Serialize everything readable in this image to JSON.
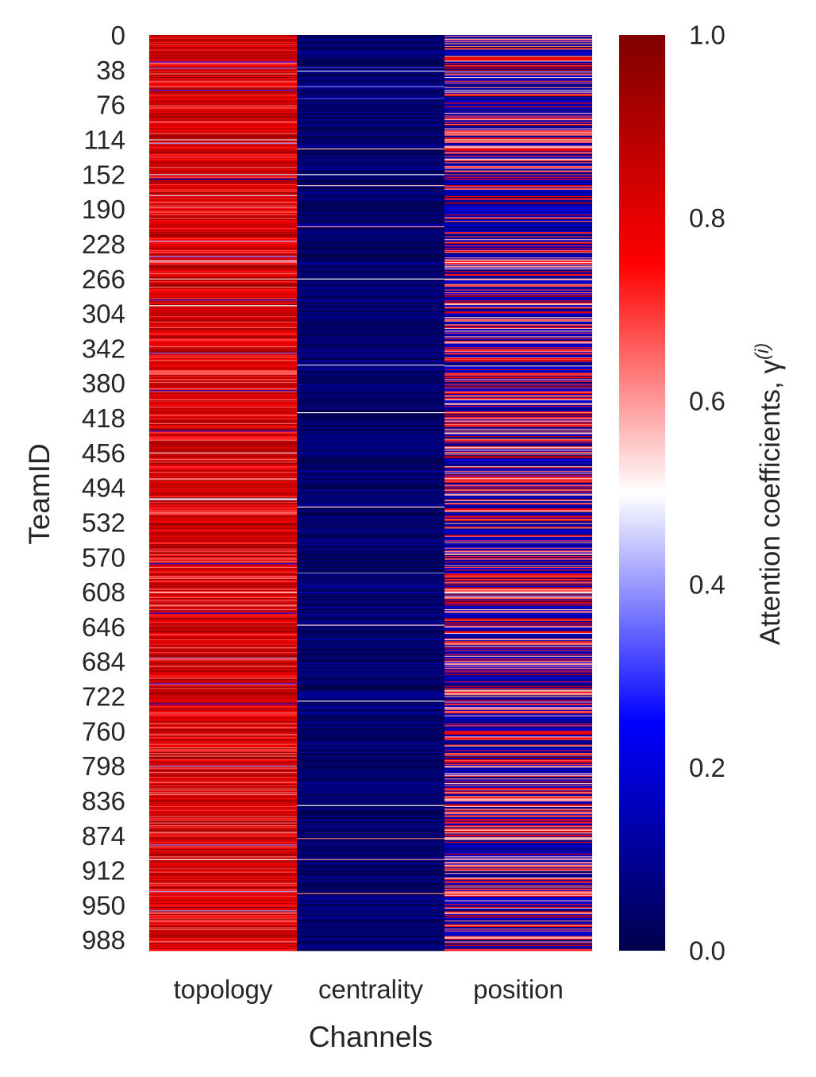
{
  "chart_data": {
    "type": "heatmap",
    "title": "",
    "xlabel": "Channels",
    "ylabel": "TeamID",
    "x_categories": [
      "topology",
      "centrality",
      "position"
    ],
    "y_range": [
      0,
      1000
    ],
    "y_ticks": [
      "0",
      "38",
      "76",
      "114",
      "152",
      "190",
      "228",
      "266",
      "304",
      "342",
      "380",
      "418",
      "456",
      "494",
      "532",
      "570",
      "608",
      "646",
      "684",
      "722",
      "760",
      "798",
      "836",
      "874",
      "912",
      "950",
      "988"
    ],
    "colorbar": {
      "label": "Attention coefficients, γ",
      "label_superscript": "(i)",
      "range": [
        0.0,
        1.0
      ],
      "ticks": [
        "0.0",
        "0.2",
        "0.4",
        "0.6",
        "0.8",
        "1.0"
      ],
      "colormap": "seismic",
      "stops": [
        "#00004c",
        "#0000ff",
        "#ffffff",
        "#ff0000",
        "#7f0000"
      ]
    },
    "series": [
      {
        "channel": "topology",
        "typical_range": [
          0.62,
          0.96
        ]
      },
      {
        "channel": "centrality",
        "typical_range": [
          0.0,
          0.12
        ]
      },
      {
        "channel": "position",
        "typical_range": [
          0.05,
          0.85
        ]
      }
    ],
    "notable_rows": [
      {
        "team": 114,
        "topology": 0.52,
        "centrality": 0.05,
        "position": 0.5
      },
      {
        "team": 152,
        "topology": 0.45,
        "centrality": 0.5,
        "position": 0.68
      },
      {
        "team": 266,
        "topology": 0.55,
        "centrality": 0.5,
        "position": 0.55
      },
      {
        "team": 456,
        "topology": 0.52,
        "centrality": 0.18,
        "position": 0.52
      },
      {
        "team": 608,
        "topology": 0.5,
        "centrality": 0.2,
        "position": 0.5
      },
      {
        "team": 798,
        "topology": 0.4,
        "centrality": 0.05,
        "position": 0.65
      },
      {
        "team": 900,
        "topology": 0.5,
        "centrality": 0.6,
        "position": 0.45
      }
    ]
  }
}
